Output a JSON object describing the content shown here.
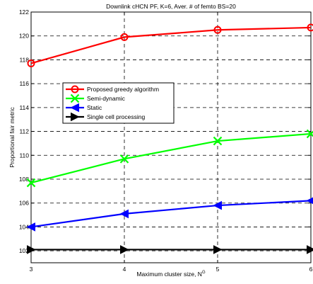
{
  "chart_data": {
    "type": "line",
    "title": "Downlink cHCN PF, K=6, Aver. # of femto BS=20",
    "xlabel": "Maximum cluster size, N",
    "xlabel_superscript": "G",
    "ylabel": "Proportional fair metric",
    "x": [
      3,
      4,
      5,
      6
    ],
    "xlim": [
      3,
      6
    ],
    "ylim": [
      101,
      122
    ],
    "xticks": [
      "3",
      "4",
      "5",
      "6"
    ],
    "yticks": [
      "102",
      "104",
      "106",
      "108",
      "110",
      "112",
      "114",
      "116",
      "118",
      "120",
      "122"
    ],
    "grid": true,
    "legend_position": "center-left",
    "series": [
      {
        "name": "Proposed greedy algorithm",
        "color": "#ff0000",
        "marker": "circle",
        "values": [
          117.7,
          119.9,
          120.5,
          120.7
        ]
      },
      {
        "name": "Semi-dynamic",
        "color": "#00ff00",
        "marker": "x",
        "values": [
          107.7,
          109.7,
          111.2,
          111.8
        ]
      },
      {
        "name": "Static",
        "color": "#0000ff",
        "marker": "triangle-left",
        "values": [
          104.0,
          105.1,
          105.8,
          106.2
        ]
      },
      {
        "name": "Single cell processing",
        "color": "#000000",
        "marker": "triangle-right",
        "values": [
          102.1,
          102.1,
          102.1,
          102.1
        ]
      }
    ]
  }
}
